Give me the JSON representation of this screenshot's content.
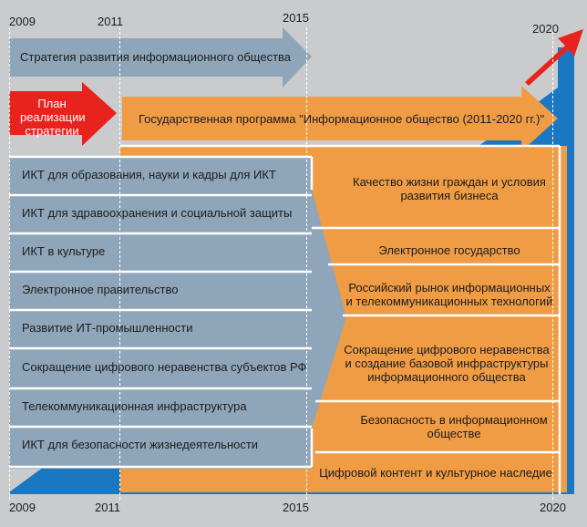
{
  "years_top": [
    "2009",
    "2011",
    "2015",
    "2020"
  ],
  "years_bottom": [
    "2009",
    "2011",
    "2015",
    "2020"
  ],
  "strategy": {
    "label": "Стратегия развития информационного общества"
  },
  "plan": {
    "label": "План реализации стратегии"
  },
  "program": {
    "label": "Государственная программа \"Информационное общество (2011-2020 гг.)\""
  },
  "left_items": [
    "ИКТ для образования, науки и кадры для ИКТ",
    "ИКТ для здравоохранения и социальной защиты",
    "ИКТ в культуре",
    "Электронное правительство",
    "Развитие ИТ-промышленности",
    "Сокращение цифрового неравенства субъектов РФ",
    "Телекоммуникационная инфраструктура",
    "ИКТ для безопасности жизнедеятельности"
  ],
  "right_items": [
    "Качество жизни граждан и условия развития бизнеса",
    "Электронное государство",
    "Российский рынок информационных и телекоммуникационных технологий",
    "Сокращение цифрового неравенства и создание базовой инфраструктуры информационного общества",
    "Безопасность в информационном обществе",
    "Цифровой контент и культурное наследие"
  ],
  "colors": {
    "background": "#c9cbcd",
    "steel_blue": "#8fa6ba",
    "orange": "#ef9c45",
    "red": "#e8231d",
    "blue": "#1a78c2"
  }
}
